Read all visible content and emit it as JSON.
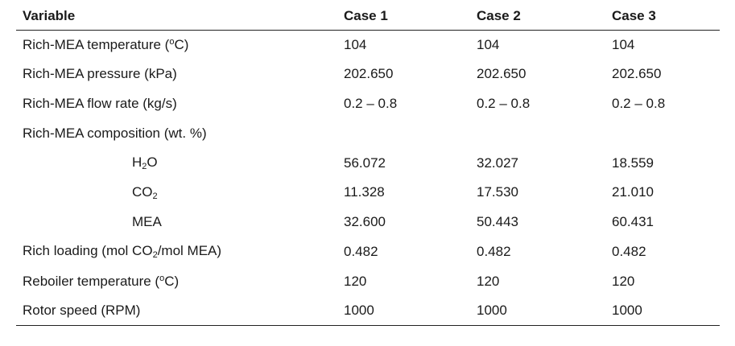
{
  "table": {
    "headers": [
      "Variable",
      "Case 1",
      "Case 2",
      "Case 3"
    ],
    "rows": [
      {
        "label": {
          "pre": "Rich-MEA temperature (",
          "deg": "o",
          "post": "C)"
        },
        "values": [
          "104",
          "104",
          "104"
        ]
      },
      {
        "label": "Rich-MEA pressure (kPa)",
        "values": [
          "202.650",
          "202.650",
          "202.650"
        ]
      },
      {
        "label": "Rich-MEA flow rate (kg/s)",
        "values": [
          "0.2 – 0.8",
          "0.2 – 0.8",
          "0.2 – 0.8"
        ]
      },
      {
        "label": "Rich-MEA composition (wt. %)",
        "values": [
          "",
          "",
          ""
        ]
      },
      {
        "label": {
          "pre": "H",
          "sub": "2",
          "post": "O"
        },
        "values": [
          "56.072",
          "32.027",
          "18.559"
        ]
      },
      {
        "label": {
          "pre": "CO",
          "sub": "2",
          "post": ""
        },
        "values": [
          "11.328",
          "17.530",
          "21.010"
        ]
      },
      {
        "label": "MEA",
        "values": [
          "32.600",
          "50.443",
          "60.431"
        ]
      },
      {
        "label": {
          "pre": "Rich loading (mol CO",
          "sub": "2",
          "post": "/mol MEA)"
        },
        "values": [
          "0.482",
          "0.482",
          "0.482"
        ]
      },
      {
        "label": {
          "pre": "Reboiler temperature (",
          "deg": "o",
          "post": "C)"
        },
        "values": [
          "120",
          "120",
          "120"
        ]
      },
      {
        "label": "Rotor speed (RPM)",
        "values": [
          "1000",
          "1000",
          "1000"
        ]
      }
    ]
  }
}
